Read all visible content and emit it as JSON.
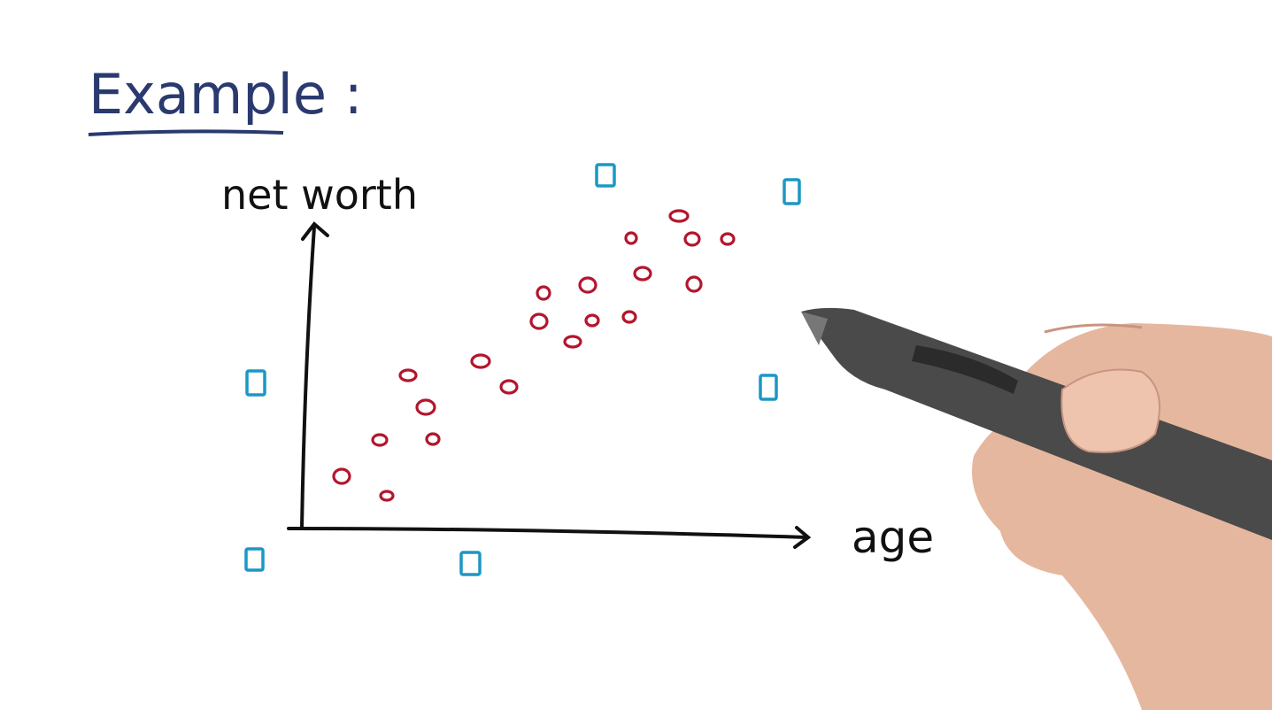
{
  "header": {
    "title": "Example :"
  },
  "diagram": {
    "y_axis_label": "net worth",
    "x_axis_label": "age"
  }
}
